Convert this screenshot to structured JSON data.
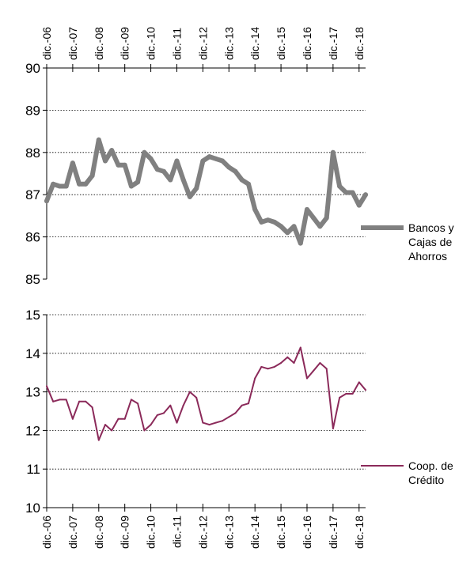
{
  "chart_data": [
    {
      "type": "line",
      "title": "",
      "x_tick_labels": [
        "dic.-06",
        "dic.-07",
        "dic.-08",
        "dic.-09",
        "dic.-10",
        "dic.-11",
        "dic.-12",
        "dic.-13",
        "dic.-14",
        "dic.-15",
        "dic.-16",
        "dic.-17",
        "dic.-18"
      ],
      "x_tick_position": "top",
      "ylim": [
        85,
        90
      ],
      "y_ticks": [
        "85",
        "86",
        "87",
        "88",
        "89",
        "90"
      ],
      "grid": true,
      "legend_placement": "right",
      "series": [
        {
          "name": "Bancos y Cajas de Ahorros",
          "color": "#808080",
          "x": [
            2006.92,
            2007.17,
            2007.42,
            2007.67,
            2007.92,
            2008.17,
            2008.42,
            2008.67,
            2008.92,
            2009.17,
            2009.42,
            2009.67,
            2009.92,
            2010.17,
            2010.42,
            2010.67,
            2010.92,
            2011.17,
            2011.42,
            2011.67,
            2011.92,
            2012.17,
            2012.42,
            2012.67,
            2012.92,
            2013.17,
            2013.42,
            2013.67,
            2013.92,
            2014.17,
            2014.42,
            2014.67,
            2014.92,
            2015.17,
            2015.42,
            2015.67,
            2015.92,
            2016.17,
            2016.42,
            2016.67,
            2016.92,
            2017.17,
            2017.42,
            2017.67,
            2017.92,
            2018.17,
            2018.42,
            2018.67,
            2018.92,
            2019.17
          ],
          "values": [
            86.85,
            87.25,
            87.2,
            87.2,
            87.75,
            87.25,
            87.25,
            87.45,
            88.3,
            87.8,
            88.05,
            87.7,
            87.7,
            87.2,
            87.3,
            88.0,
            87.85,
            87.6,
            87.55,
            87.35,
            87.8,
            87.35,
            86.95,
            87.15,
            87.8,
            87.9,
            87.85,
            87.8,
            87.65,
            87.55,
            87.35,
            87.25,
            86.65,
            86.35,
            86.4,
            86.35,
            86.25,
            86.1,
            86.25,
            85.85,
            86.65,
            86.45,
            86.25,
            86.45,
            88.0,
            87.2,
            87.05,
            87.05,
            86.75,
            87.0
          ]
        }
      ]
    },
    {
      "type": "line",
      "title": "",
      "x_tick_labels": [
        "dic.-06",
        "dic.-07",
        "dic.-08",
        "dic.-09",
        "dic.-10",
        "dic.-11",
        "dic.-12",
        "dic.-13",
        "dic.-14",
        "dic.-15",
        "dic.-16",
        "dic.-17",
        "dic.-18"
      ],
      "x_tick_position": "bottom",
      "ylim": [
        10,
        15
      ],
      "y_ticks": [
        "10",
        "11",
        "12",
        "13",
        "14",
        "15"
      ],
      "grid": true,
      "legend_placement": "right",
      "series": [
        {
          "name": "Coop. de Crédito",
          "color": "#8b2a5a",
          "x": [
            2006.92,
            2007.17,
            2007.42,
            2007.67,
            2007.92,
            2008.17,
            2008.42,
            2008.67,
            2008.92,
            2009.17,
            2009.42,
            2009.67,
            2009.92,
            2010.17,
            2010.42,
            2010.67,
            2010.92,
            2011.17,
            2011.42,
            2011.67,
            2011.92,
            2012.17,
            2012.42,
            2012.67,
            2012.92,
            2013.17,
            2013.42,
            2013.67,
            2013.92,
            2014.17,
            2014.42,
            2014.67,
            2014.92,
            2015.17,
            2015.42,
            2015.67,
            2015.92,
            2016.17,
            2016.42,
            2016.67,
            2016.92,
            2017.17,
            2017.42,
            2017.67,
            2017.92,
            2018.17,
            2018.42,
            2018.67,
            2018.92,
            2019.17
          ],
          "values": [
            13.15,
            12.75,
            12.8,
            12.8,
            12.3,
            12.75,
            12.75,
            12.6,
            11.75,
            12.15,
            12.0,
            12.3,
            12.3,
            12.8,
            12.7,
            12.0,
            12.15,
            12.4,
            12.45,
            12.65,
            12.2,
            12.65,
            13.0,
            12.85,
            12.2,
            12.15,
            12.2,
            12.25,
            12.35,
            12.45,
            12.65,
            12.7,
            13.35,
            13.65,
            13.6,
            13.65,
            13.75,
            13.9,
            13.75,
            14.15,
            13.35,
            13.55,
            13.75,
            13.6,
            12.05,
            12.85,
            12.95,
            12.95,
            13.25,
            13.05
          ]
        }
      ]
    }
  ]
}
